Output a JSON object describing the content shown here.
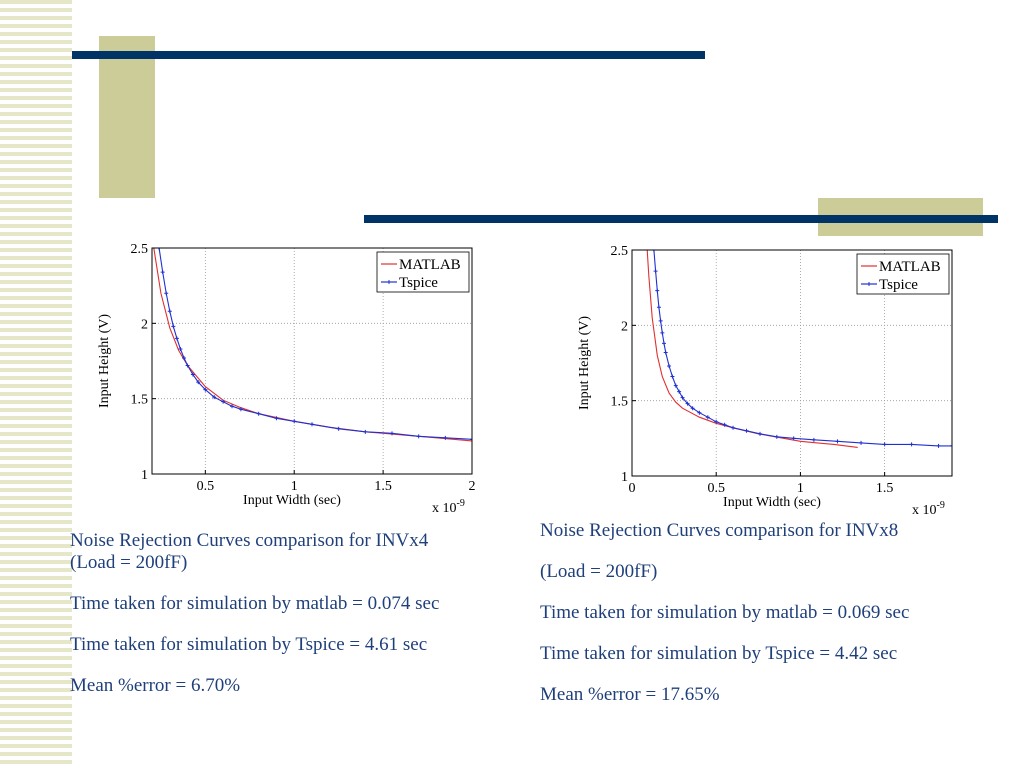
{
  "theme": {
    "stripe_color": "#e6e6c8",
    "bar_color": "#003366",
    "block_color": "#cccc99",
    "caption_color": "#1f3f7a",
    "matlab_color": "#e03030",
    "tspice_color": "#2030d0"
  },
  "chart_data": [
    {
      "type": "line",
      "xlabel": "Input Width (sec)",
      "ylabel": "Input Height (V)",
      "x_multiplier": "x 10",
      "x_exponent": "-9",
      "xlim": [
        0.2,
        2.0
      ],
      "ylim": [
        1.0,
        2.5
      ],
      "x_ticks": [
        0.5,
        1,
        1.5,
        2
      ],
      "x_tick_labels": [
        "0.5",
        "1",
        "1.5",
        "2"
      ],
      "y_ticks": [
        1,
        1.5,
        2,
        2.5
      ],
      "y_tick_labels": [
        "1",
        "1.5",
        "2",
        "2.5"
      ],
      "grid": true,
      "legend_position": "top-right",
      "series": [
        {
          "name": "MATLAB",
          "marker": false,
          "x": [
            0.21,
            0.25,
            0.3,
            0.35,
            0.4,
            0.5,
            0.6,
            0.7,
            0.8,
            1.0,
            1.2,
            1.4,
            1.6,
            1.8,
            2.0
          ],
          "y": [
            2.5,
            2.2,
            1.97,
            1.82,
            1.72,
            1.58,
            1.49,
            1.44,
            1.4,
            1.35,
            1.31,
            1.28,
            1.26,
            1.24,
            1.22
          ]
        },
        {
          "name": "Tspice",
          "marker": true,
          "x": [
            0.24,
            0.26,
            0.28,
            0.3,
            0.32,
            0.34,
            0.36,
            0.38,
            0.4,
            0.43,
            0.46,
            0.5,
            0.55,
            0.6,
            0.65,
            0.7,
            0.8,
            0.9,
            1.0,
            1.1,
            1.25,
            1.4,
            1.55,
            1.7,
            1.85,
            2.0
          ],
          "y": [
            2.5,
            2.34,
            2.2,
            2.08,
            1.98,
            1.9,
            1.83,
            1.77,
            1.72,
            1.66,
            1.61,
            1.56,
            1.51,
            1.48,
            1.45,
            1.43,
            1.4,
            1.37,
            1.35,
            1.33,
            1.3,
            1.28,
            1.27,
            1.25,
            1.24,
            1.23
          ]
        }
      ]
    },
    {
      "type": "line",
      "xlabel": "Input Width (sec)",
      "ylabel": "Input Height (V)",
      "x_multiplier": "x 10",
      "x_exponent": "-9",
      "xlim": [
        0,
        1.9
      ],
      "ylim": [
        1.0,
        2.5
      ],
      "x_ticks": [
        0,
        0.5,
        1,
        1.5
      ],
      "x_tick_labels": [
        "0",
        "0.5",
        "1",
        "1.5"
      ],
      "y_ticks": [
        1,
        1.5,
        2,
        2.5
      ],
      "y_tick_labels": [
        "1",
        "1.5",
        "2",
        "2.5"
      ],
      "grid": true,
      "legend_position": "top-right",
      "series": [
        {
          "name": "MATLAB",
          "marker": false,
          "x": [
            0.09,
            0.1,
            0.12,
            0.15,
            0.18,
            0.22,
            0.26,
            0.3,
            0.35,
            0.4,
            0.5,
            0.6,
            0.75,
            0.9,
            1.0,
            1.1,
            1.2,
            1.34
          ],
          "y": [
            2.5,
            2.33,
            2.05,
            1.8,
            1.66,
            1.55,
            1.49,
            1.45,
            1.42,
            1.39,
            1.35,
            1.32,
            1.28,
            1.25,
            1.23,
            1.22,
            1.21,
            1.19
          ]
        },
        {
          "name": "Tspice",
          "marker": true,
          "x": [
            0.13,
            0.14,
            0.15,
            0.16,
            0.17,
            0.18,
            0.19,
            0.2,
            0.22,
            0.24,
            0.26,
            0.28,
            0.3,
            0.33,
            0.36,
            0.4,
            0.45,
            0.5,
            0.55,
            0.6,
            0.68,
            0.76,
            0.86,
            0.96,
            1.08,
            1.22,
            1.36,
            1.5,
            1.66,
            1.82,
            1.9
          ],
          "y": [
            2.5,
            2.36,
            2.23,
            2.12,
            2.03,
            1.95,
            1.88,
            1.82,
            1.73,
            1.66,
            1.6,
            1.56,
            1.52,
            1.48,
            1.45,
            1.42,
            1.39,
            1.36,
            1.34,
            1.32,
            1.3,
            1.28,
            1.26,
            1.25,
            1.24,
            1.23,
            1.22,
            1.21,
            1.21,
            1.2,
            1.2
          ]
        }
      ]
    }
  ],
  "captions": [
    {
      "lines": [
        "Noise Rejection Curves comparison for INVx4",
        "(Load = 200fF)",
        "Time taken for simulation by matlab = 0.074 sec",
        "Time taken for simulation by Tspice = 4.61 sec",
        "Mean %error = 6.70%"
      ]
    },
    {
      "lines": [
        "Noise Rejection Curves comparison for INVx8",
        "(Load = 200fF)",
        "Time taken for simulation by matlab = 0.069 sec",
        "Time taken for simulation by Tspice = 4.42 sec",
        "Mean %error = 17.65%"
      ]
    }
  ]
}
